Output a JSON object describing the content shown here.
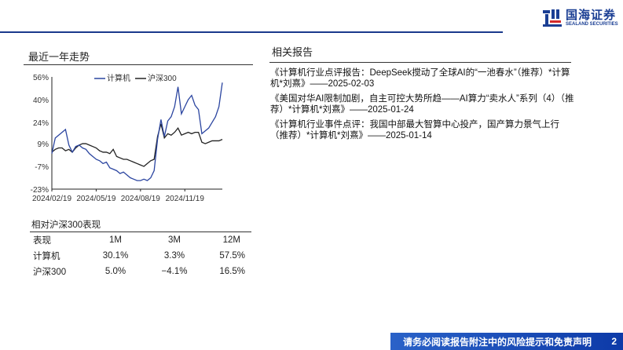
{
  "header": {
    "logo_cn": "国海证券",
    "logo_en": "SEALAND SECURITIES"
  },
  "trend": {
    "title": "最近一年走势"
  },
  "chart_data": {
    "type": "line",
    "title": "最近一年走势",
    "legend": [
      "计算机",
      "沪深300"
    ],
    "legend_position": "top",
    "yticks": [
      "56%",
      "40%",
      "24%",
      "9%",
      "-7%",
      "-23%"
    ],
    "ytick_values": [
      56,
      40,
      24,
      9,
      -7,
      -23
    ],
    "ylim": [
      -23,
      56
    ],
    "xticks": [
      "2024/02/19",
      "2024/05/19",
      "2024/08/19",
      "2024/11/19"
    ],
    "xtick_weeks": [
      0,
      13,
      26,
      39
    ],
    "x_unit": "weeks since 2024/02/19",
    "series": [
      {
        "name": "计算机",
        "color": "#2b45a0",
        "values": [
          2,
          13,
          15,
          17,
          19,
          8,
          3,
          7,
          8,
          6,
          5,
          2,
          0,
          -2,
          -3,
          -5,
          -4,
          -8,
          -9,
          -10,
          -12,
          -11,
          -13,
          -15,
          -16,
          -17,
          -17,
          -16,
          -17,
          -15,
          -10,
          12,
          26,
          14,
          25,
          28,
          35,
          49,
          30,
          35,
          40,
          43,
          36,
          33,
          16,
          18,
          20,
          24,
          28,
          35,
          52
        ]
      },
      {
        "name": "沪深300",
        "color": "#222222",
        "values": [
          3,
          5,
          6,
          6,
          4,
          5,
          3,
          6,
          8,
          9,
          9,
          8,
          7,
          6,
          4,
          3,
          3,
          2,
          5,
          0,
          -1,
          -2,
          -2,
          -3,
          -4,
          -5,
          -6,
          -7,
          -5,
          -3,
          -2,
          14,
          23,
          13,
          16,
          15,
          17,
          20,
          15,
          16,
          17,
          16,
          17,
          17,
          10,
          9,
          10,
          11,
          11,
          11,
          12
        ]
      }
    ]
  },
  "perf": {
    "title": "相对沪深300表现",
    "headers": [
      "表现",
      "1M",
      "3M",
      "12M"
    ],
    "rows": [
      [
        "计算机",
        "30.1%",
        "3.3%",
        "57.5%"
      ],
      [
        "沪深300",
        "5.0%",
        "−4.1%",
        "16.5%"
      ]
    ]
  },
  "related": {
    "title": "相关报告",
    "items": [
      "《计算机行业点评报告：DeepSeek搅动了全球AI的“一池春水”（推荐）*计算机*刘熹》——2025-02-03",
      "《美国对华AI限制加剧，自主可控大势所趋——AI算力“卖水人”系列（4）（推荐）*计算机*刘熹》——2025-01-24",
      "《计算机行业事件点评：我国中部最大智算中心投产，国产算力景气上行（推荐）*计算机*刘熹》——2025-01-14"
    ]
  },
  "footer": {
    "disclaimer": "请务必阅读报告附注中的风险提示和免责声明",
    "page": "2"
  }
}
